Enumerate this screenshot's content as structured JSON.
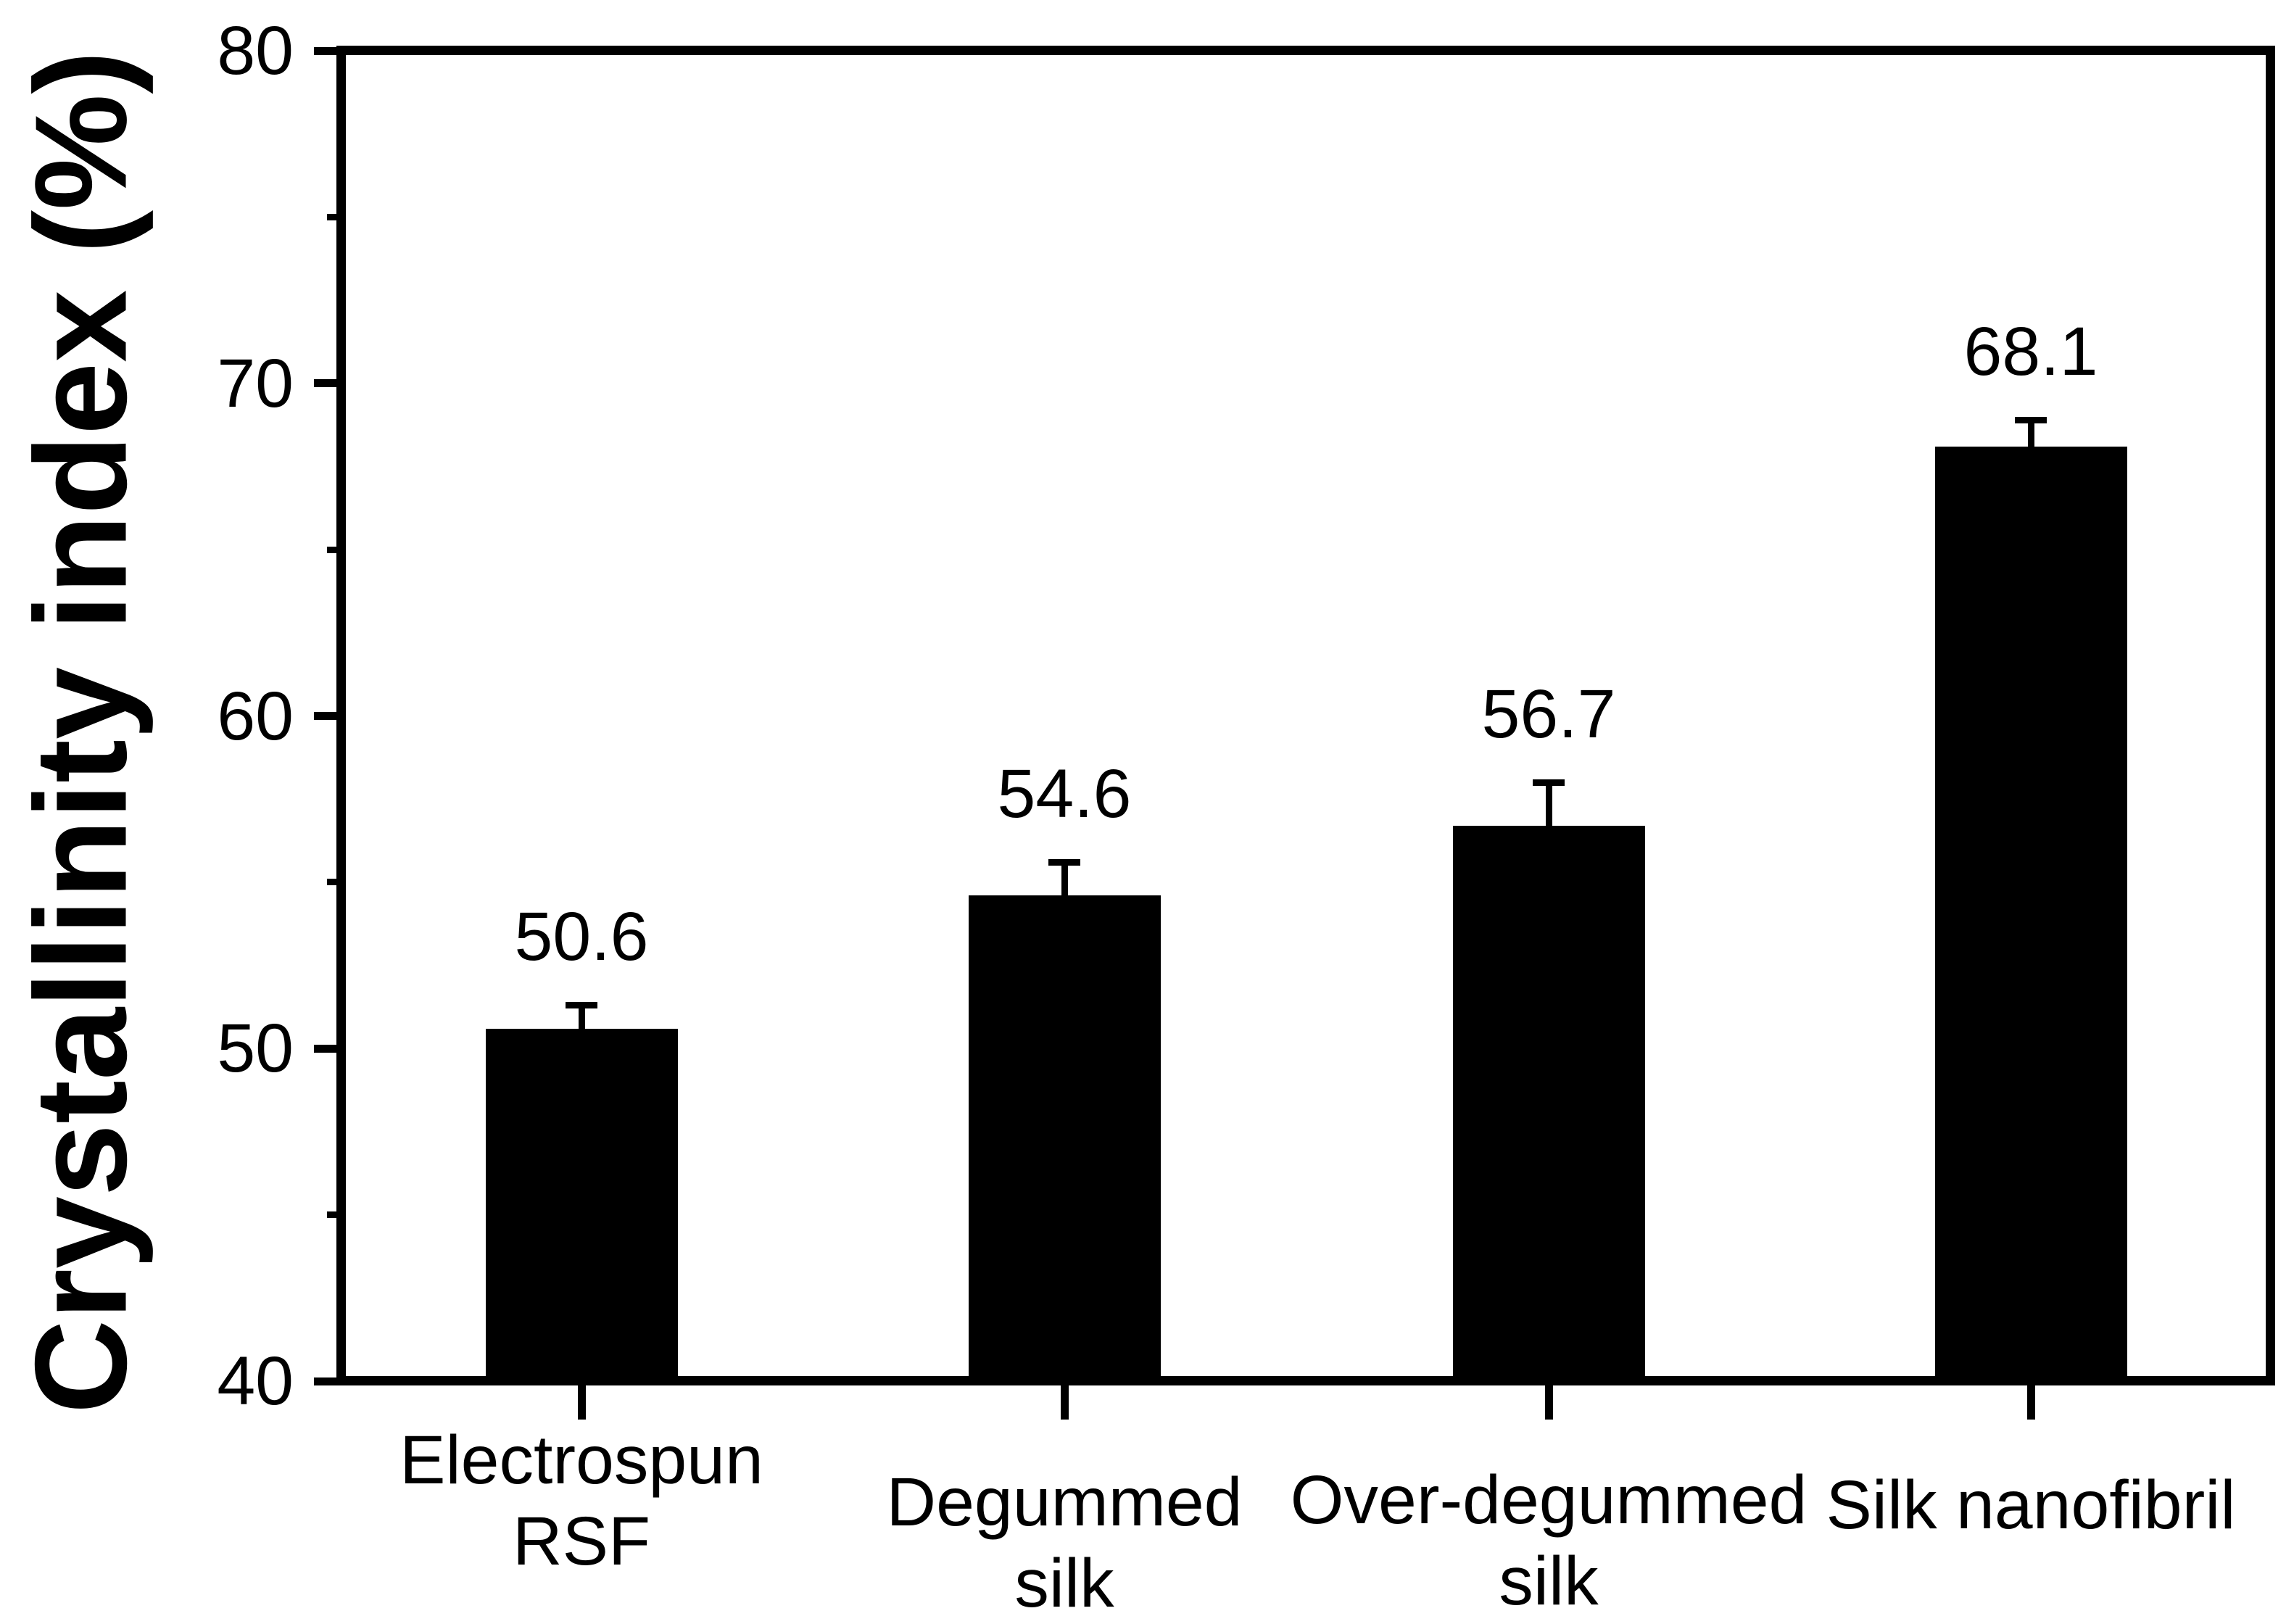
{
  "chart_data": {
    "type": "bar",
    "title": "",
    "xlabel": "",
    "ylabel": "Crystallinity index (%)",
    "categories": [
      "Electrospun RSF",
      "Degummed silk",
      "Over-degummed silk",
      "Silk nanofibril"
    ],
    "categories_lines": [
      [
        "Electrospun",
        "RSF"
      ],
      [
        "Degummed",
        "silk"
      ],
      [
        "Over-degummed",
        "silk"
      ],
      [
        "Silk nanofibril"
      ]
    ],
    "values": [
      50.6,
      54.6,
      56.7,
      68.1
    ],
    "errors_plus": [
      0.8,
      1.1,
      1.4,
      0.9
    ],
    "data_labels": [
      "50.6",
      "54.6",
      "56.7",
      "68.1"
    ],
    "ylim": [
      40,
      80
    ],
    "yticks_major": [
      80,
      70,
      60,
      50,
      40
    ],
    "yticks_minor": [
      75,
      65,
      55,
      45
    ],
    "bar_color": "#000000",
    "axis_color": "#000000",
    "background_color": "#ffffff",
    "grid": false,
    "legend": null,
    "error_bar_direction": "upper-only",
    "frame": "full-box"
  }
}
